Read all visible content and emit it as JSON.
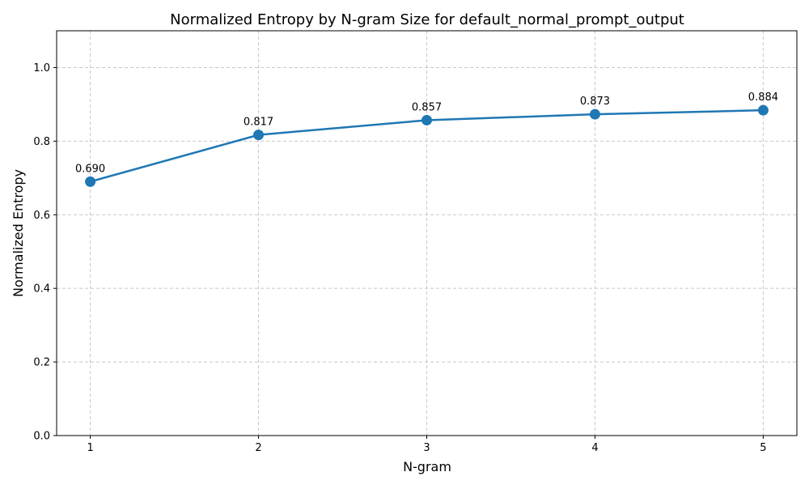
{
  "chart_data": {
    "type": "line",
    "title": "Normalized Entropy by N-gram Size for default_normal_prompt_output",
    "xlabel": "N-gram",
    "ylabel": "Normalized Entropy",
    "x": [
      1,
      2,
      3,
      4,
      5
    ],
    "x_tick_labels": [
      "1",
      "2",
      "3",
      "4",
      "5"
    ],
    "xlim": [
      0.8,
      5.2
    ],
    "ylim": [
      0.0,
      1.1
    ],
    "y_ticks": [
      0.0,
      0.2,
      0.4,
      0.6,
      0.8,
      1.0
    ],
    "y_tick_labels": [
      "0.0",
      "0.2",
      "0.4",
      "0.6",
      "0.8",
      "1.0"
    ],
    "grid": true,
    "grid_style": "dashed",
    "series": [
      {
        "values": [
          0.69,
          0.817,
          0.857,
          0.873,
          0.884
        ],
        "data_labels": [
          "0.690",
          "0.817",
          "0.857",
          "0.873",
          "0.884"
        ],
        "color": "#1f77b4",
        "marker": "circle"
      }
    ]
  }
}
